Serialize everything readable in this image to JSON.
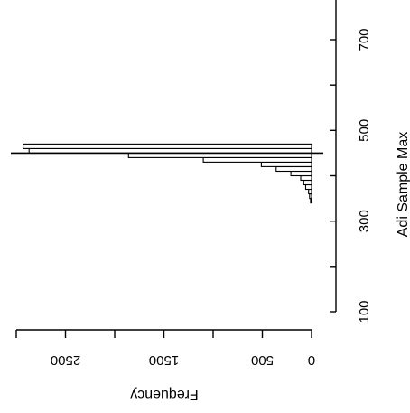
{
  "chart_data": {
    "type": "bar",
    "orientation": "horizontal-histogram",
    "ylabel": "Adi Sample Max",
    "xlabel": "Frequency",
    "y_ticks": [
      100,
      300,
      500,
      700
    ],
    "y_range": [
      100,
      800
    ],
    "x_ticks": [
      0,
      500,
      1500,
      2500
    ],
    "x_range": [
      0,
      3000
    ],
    "marker_value": 450,
    "bins": [
      {
        "low": 340,
        "high": 350,
        "frequency": 10
      },
      {
        "low": 350,
        "high": 360,
        "frequency": 20
      },
      {
        "low": 360,
        "high": 370,
        "frequency": 30
      },
      {
        "low": 370,
        "high": 380,
        "frequency": 60
      },
      {
        "low": 380,
        "high": 390,
        "frequency": 80
      },
      {
        "low": 390,
        "high": 400,
        "frequency": 110
      },
      {
        "low": 400,
        "high": 410,
        "frequency": 210
      },
      {
        "low": 410,
        "high": 420,
        "frequency": 360
      },
      {
        "low": 420,
        "high": 430,
        "frequency": 510
      },
      {
        "low": 430,
        "high": 440,
        "frequency": 1100
      },
      {
        "low": 440,
        "high": 450,
        "frequency": 1860
      },
      {
        "low": 450,
        "high": 460,
        "frequency": 2870
      },
      {
        "low": 460,
        "high": 470,
        "frequency": 2930
      }
    ]
  }
}
